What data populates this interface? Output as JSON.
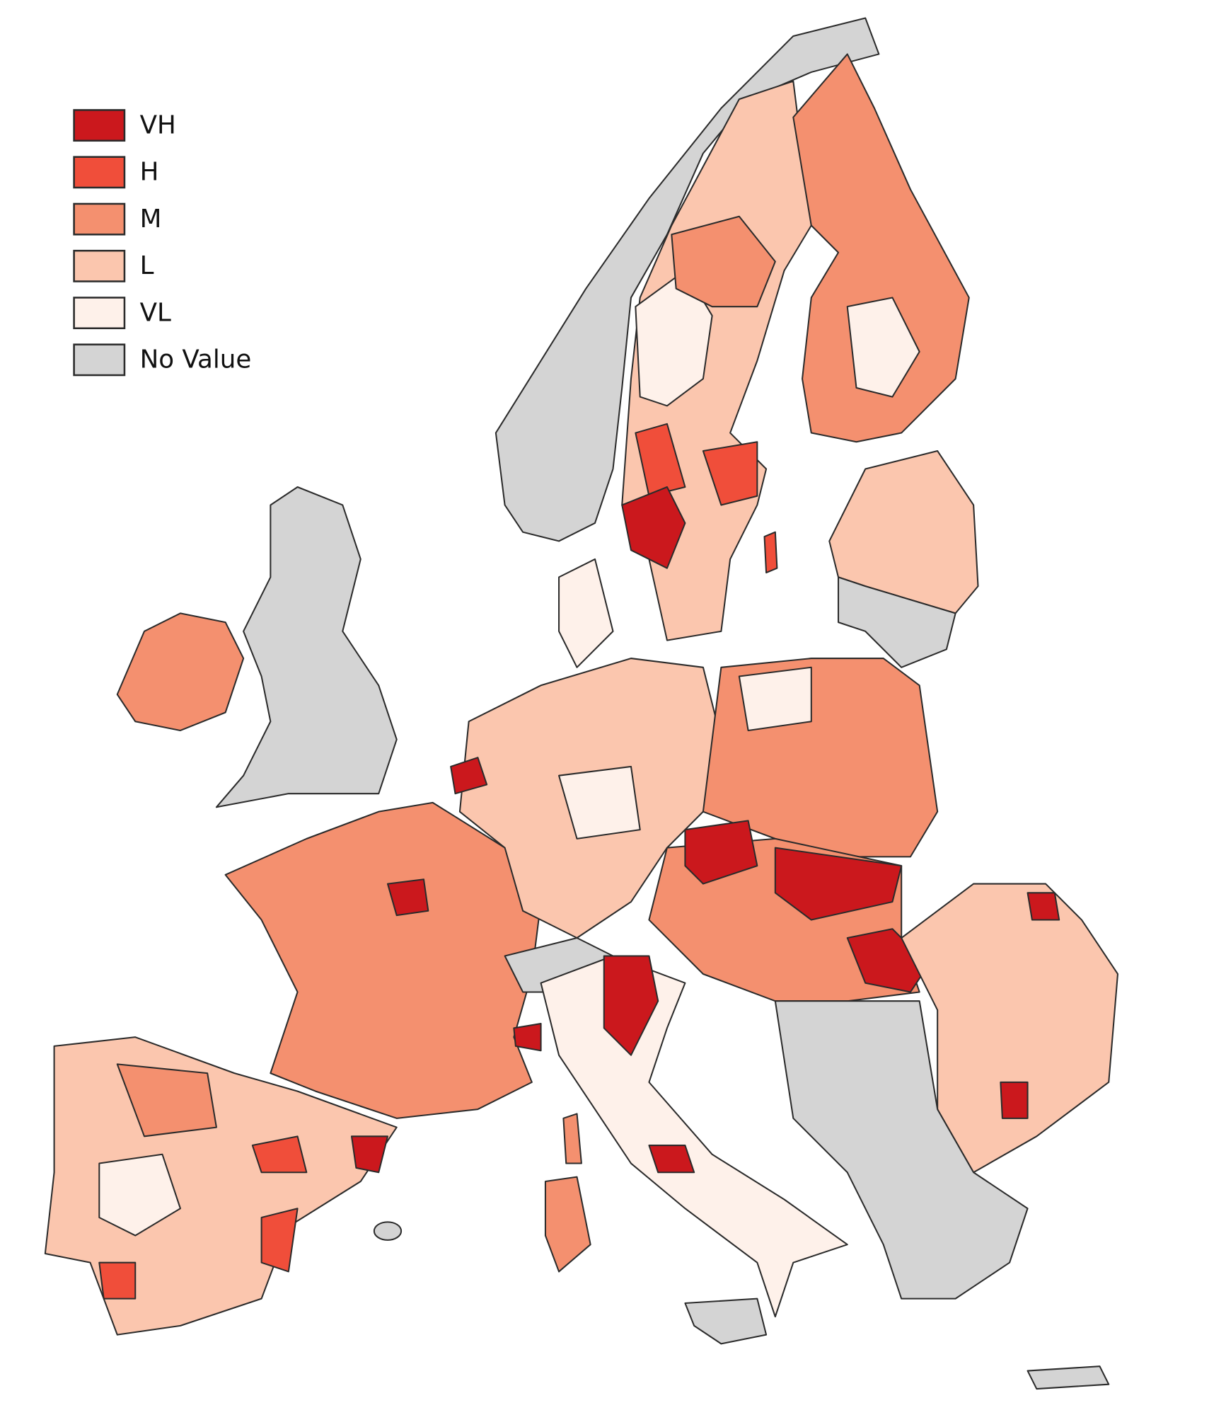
{
  "legend": {
    "items": [
      {
        "label": "VH",
        "color": "#cb181d"
      },
      {
        "label": "H",
        "color": "#f04e3a"
      },
      {
        "label": "M",
        "color": "#f4906f"
      },
      {
        "label": "L",
        "color": "#fbc6ae"
      },
      {
        "label": "VL",
        "color": "#fef1ea"
      },
      {
        "label": "No Value",
        "color": "#d4d4d4"
      }
    ]
  }
}
